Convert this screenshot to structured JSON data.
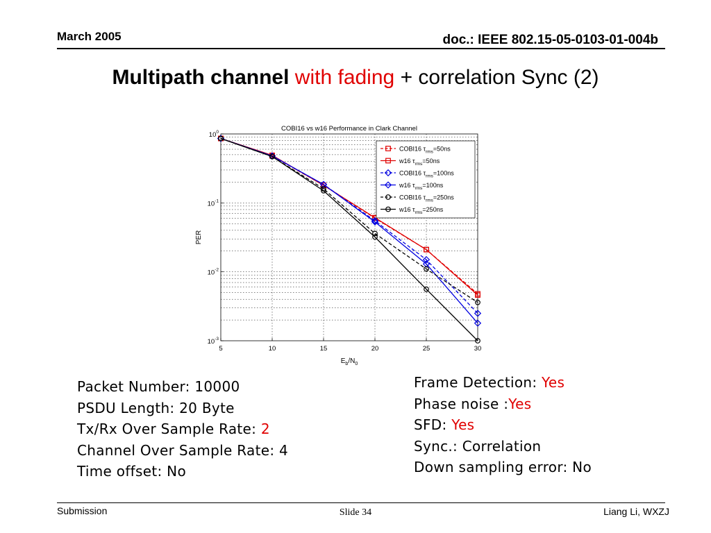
{
  "header": {
    "date": "March 2005",
    "doc": "doc.: IEEE 802.15-05-0103-01-004b"
  },
  "title": {
    "part1": "Multipath channel",
    "part2": "with fading",
    "part3": "+ correlation Sync (2)"
  },
  "chart_data": {
    "type": "line",
    "title": "COBI16 vs w16 Performance in Clark Channel",
    "xlabel": "Eb/N0",
    "ylabel": "PER",
    "y_scale": "log",
    "xlim": [
      5,
      30
    ],
    "ylim": [
      0.001,
      1
    ],
    "x_ticks": [
      "5",
      "10",
      "15",
      "20",
      "25",
      "30"
    ],
    "y_ticks": [
      "10^0",
      "10^-1",
      "10^-2",
      "10^-3"
    ],
    "grid": true,
    "legend_position": "top-right",
    "x": [
      5,
      10,
      15,
      20,
      25,
      30
    ],
    "series": [
      {
        "name": "COBI16 τrms=50ns",
        "color": "#e00000",
        "dash": true,
        "marker": "square",
        "values": [
          0.86,
          0.48,
          0.18,
          0.06,
          0.021,
          0.0048
        ]
      },
      {
        "name": "w16 τrms=50ns",
        "color": "#e00000",
        "dash": false,
        "marker": "square",
        "values": [
          0.86,
          0.49,
          0.18,
          0.061,
          0.021,
          0.0046
        ]
      },
      {
        "name": "COBI16 τrms=100ns",
        "color": "#0000e0",
        "dash": true,
        "marker": "diamond",
        "values": [
          0.86,
          0.48,
          0.185,
          0.055,
          0.015,
          0.0025
        ]
      },
      {
        "name": "w16 τrms=100ns",
        "color": "#0000e0",
        "dash": false,
        "marker": "diamond",
        "values": [
          0.86,
          0.48,
          0.185,
          0.053,
          0.013,
          0.0018
        ]
      },
      {
        "name": "COBI16 τrms=250ns",
        "color": "#000000",
        "dash": true,
        "marker": "circle",
        "values": [
          0.86,
          0.47,
          0.16,
          0.036,
          0.011,
          0.0036
        ]
      },
      {
        "name": "w16 τrms=250ns",
        "color": "#000000",
        "dash": false,
        "marker": "circle",
        "values": [
          0.86,
          0.47,
          0.15,
          0.032,
          0.0056,
          0.001
        ]
      }
    ]
  },
  "params_left": {
    "packet_number": "Packet Number: 10000",
    "psdu_length": "PSDU Length: 20 Byte",
    "txrx_label": "Tx/Rx Over Sample Rate: ",
    "txrx_value": "2",
    "channel_osr": "Channel Over Sample Rate: 4",
    "time_offset": "Time offset: No"
  },
  "params_right": {
    "frame_detection_label": "Frame Detection: ",
    "frame_detection_value": "Yes",
    "phase_noise_label": "Phase noise :",
    "phase_noise_value": "Yes",
    "sfd_label": "SFD: ",
    "sfd_value": "Yes",
    "sync": "Sync.: Correlation",
    "down_sampling": "Down sampling error: No"
  },
  "footer": {
    "left": "Submission",
    "center": "Slide 34",
    "right": "Liang Li, WXZJ"
  }
}
